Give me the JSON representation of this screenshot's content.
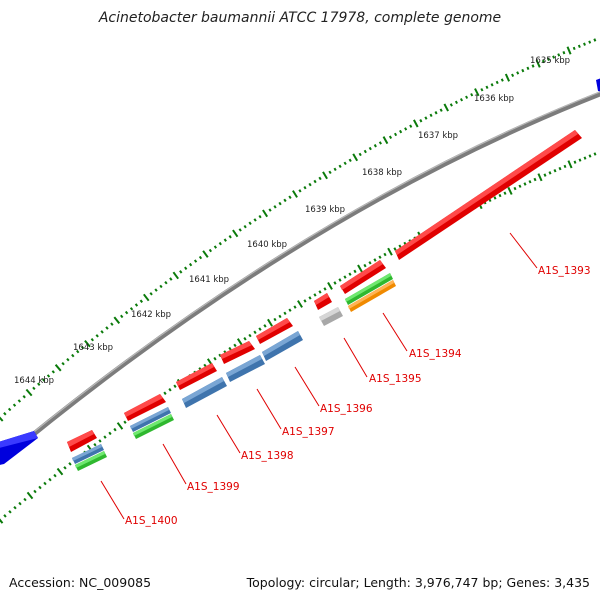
{
  "title": "Acinetobacter baumannii ATCC 17978, complete genome",
  "footer": {
    "accession": "Accession: NC_009085",
    "summary": "Topology: circular; Length: 3,976,747 bp; Genes: 3,435"
  },
  "kbp_labels": [
    "1635 kbp",
    "1636 kbp",
    "1637 kbp",
    "1638 kbp",
    "1639 kbp",
    "1640 kbp",
    "1641 kbp",
    "1642 kbp",
    "1643 kbp",
    "1644 kbp"
  ],
  "gene_labels": [
    "A1S_1393",
    "A1S_1394",
    "A1S_1395",
    "A1S_1396",
    "A1S_1397",
    "A1S_1398",
    "A1S_1399",
    "A1S_1400"
  ],
  "colors": {
    "backbone": "#808080",
    "forward_gene": "#ff0000",
    "neighbor_gene": "#0000ee",
    "cog_blue": "#4f86c0",
    "cog_green": "#3ecf3e",
    "cog_orange": "#ff9a1a",
    "cog_grey": "#bdbdbd",
    "tick": "#0a7a0a",
    "label": "#e00000"
  }
}
